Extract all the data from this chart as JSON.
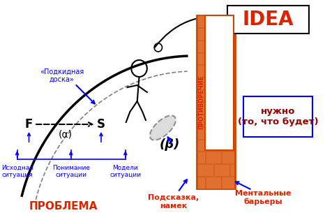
{
  "bg_color": "#ffffff",
  "blue": "#0000ff",
  "orange_red": "#dd2200",
  "dark_red": "#990000",
  "brick_orange": "#cc4400",
  "brick_fill": "#e07030",
  "mortar_col": "#f0a060",
  "label_F": "F",
  "label_S": "S",
  "label_alpha": "(α)",
  "label_beta": "(β)",
  "label_problema": "ПРОБЛЕМА",
  "label_protivoreche": "ПРОТИВОРЕЧИЕ",
  "label_idea": "IDEA",
  "label_podkidnaya": "«Подкидная\nдоска»",
  "label_ishodnaya": "Исходная\nситуация",
  "label_ponimanie": "Понимание\nситуации",
  "label_modeli": "Модели\nситуации",
  "label_podskazka": "Подсказка,\nнамек",
  "label_mentalnye": "Ментальные\nбарьеры",
  "label_nuzhno": "нужно\n(то, что будет)"
}
